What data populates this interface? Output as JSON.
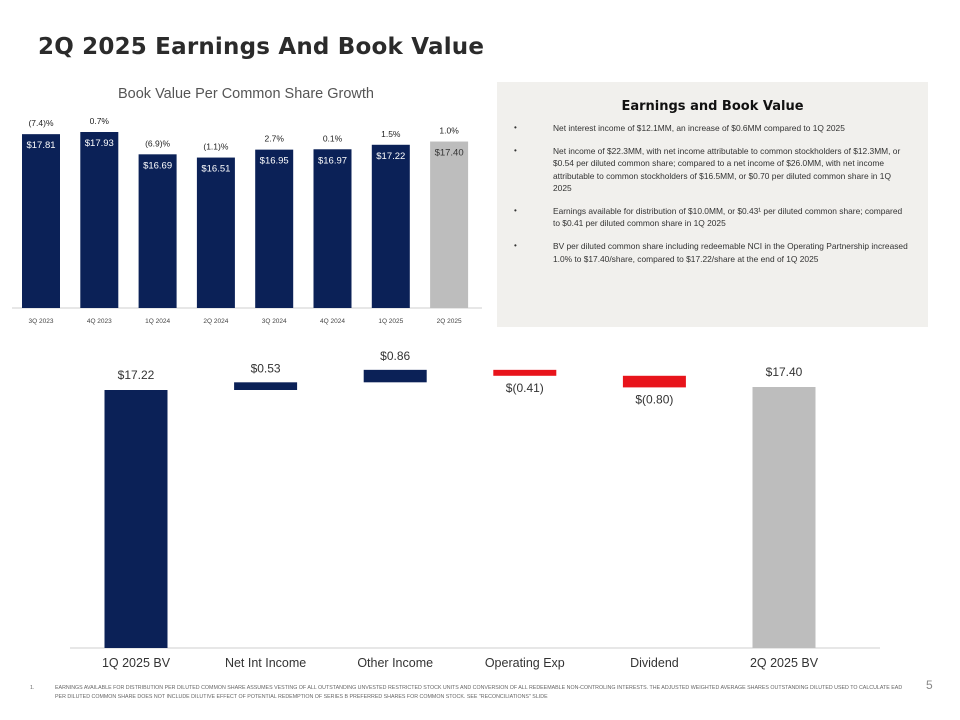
{
  "slide": {
    "title": "2Q 2025 Earnings And Book Value",
    "page_number": "5"
  },
  "panel": {
    "title": "Earnings and Book Value",
    "bullets": [
      "Net interest income of $12.1MM, an increase of $0.6MM compared to 1Q 2025",
      "Net income of $22.3MM, with net income attributable to common stockholders of $12.3MM, or $0.54 per diluted common share; compared to a net income of $26.0MM, with net income attributable to common stockholders of $16.5MM, or $0.70 per diluted common share in 1Q 2025",
      "Earnings available for distribution of $10.0MM, or $0.43¹ per diluted common share; compared to $0.41 per diluted common share in 1Q 2025",
      "BV per diluted common share including redeemable NCI in the Operating Partnership increased 1.0% to $17.40/share, compared to $17.22/share at the end of 1Q 2025"
    ]
  },
  "footnote": {
    "number": "1.",
    "text": "Earnings available for distribution per diluted common share assumes vesting of all outstanding unvested restricted stock units and conversion of all redeemable non-controling interests. The adjusted weighted average shares outstanding diluted used to calculate EAD per diluted common share does not include dilutive effect of potential redemption of Series B preferred shares for common stock. See \"Reconciliations\" slide"
  },
  "colors": {
    "navy": "#0b2157",
    "gray": "#bdbdbd",
    "red": "#e8141b"
  },
  "chart_data": [
    {
      "type": "bar",
      "title": "Book Value Per Common Share Growth",
      "categories": [
        "3Q 2023",
        "4Q 2023",
        "1Q 2024",
        "2Q 2024",
        "3Q 2024",
        "4Q 2024",
        "1Q 2025",
        "2Q 2025"
      ],
      "values": [
        17.81,
        17.93,
        16.69,
        16.51,
        16.95,
        16.97,
        17.22,
        17.4
      ],
      "value_labels": [
        "$17.81",
        "$17.93",
        "$16.69",
        "$16.51",
        "$16.95",
        "$16.97",
        "$17.22",
        "$17.40"
      ],
      "growth_labels": [
        "(7.4)%",
        "0.7%",
        "(6.9)%",
        "(1.1)%",
        "2.7%",
        "0.1%",
        "1.5%",
        "1.0%"
      ],
      "highlight_last": true,
      "xlabel": "",
      "ylabel": "",
      "ylim": [
        0,
        18
      ]
    },
    {
      "type": "waterfall",
      "categories": [
        "1Q 2025 BV",
        "Net Int Income",
        "Other Income",
        "Operating Exp",
        "Dividend",
        "2Q 2025 BV"
      ],
      "values": [
        17.22,
        0.53,
        0.86,
        -0.41,
        -0.8,
        17.4
      ],
      "labels": [
        "$17.22",
        "$0.53",
        "$0.86",
        "$(0.41)",
        "$(0.80)",
        "$17.40"
      ],
      "kinds": [
        "total",
        "delta",
        "delta",
        "delta",
        "delta",
        "total"
      ],
      "xlabel": "",
      "ylabel": "",
      "ylim": [
        0,
        18.61
      ]
    }
  ]
}
